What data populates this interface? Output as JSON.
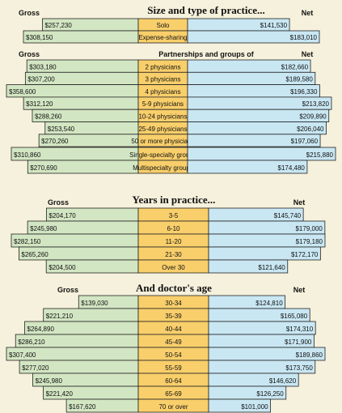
{
  "colors": {
    "background": "#f6f1dc",
    "gross_fill": "#d3e6c3",
    "net_fill": "#c9e7f3",
    "category_fill": "#f9cf6b",
    "border": "#222222"
  },
  "chart_data": [
    {
      "type": "table",
      "title": "Size and type of practice...",
      "gross_label": "Gross",
      "net_label": "Net",
      "rows": [
        {
          "category": "Solo",
          "gross": "$257,230",
          "net": "$141,530"
        },
        {
          "category": "Expense-sharing",
          "gross": "$308,150",
          "net": "$183,010"
        }
      ]
    },
    {
      "type": "table",
      "title": "Partnerships and groups of",
      "gross_label": "Gross",
      "net_label": "Net",
      "rows": [
        {
          "category": "2 physicians",
          "gross": "$303,180",
          "net": "$182,660"
        },
        {
          "category": "3 physicians",
          "gross": "$307,200",
          "net": "$189,580"
        },
        {
          "category": "4 physicians",
          "gross": "$358,600",
          "net": "$196,330"
        },
        {
          "category": "5-9 physicians",
          "gross": "$312,120",
          "net": "$213,820"
        },
        {
          "category": "10-24 physicians",
          "gross": "$288,260",
          "net": "$209,890"
        },
        {
          "category": "25-49 physicians",
          "gross": "$253,540",
          "net": "$206,040"
        },
        {
          "category": "50 or more physicians",
          "gross": "$270,260",
          "net": "$197,060"
        }
      ]
    },
    {
      "type": "table",
      "title": "",
      "gross_label": "",
      "net_label": "",
      "rows": [
        {
          "category": "Single-specialty groups",
          "gross": "$310,860",
          "net": "$215,880"
        },
        {
          "category": "Multispecialty groups",
          "gross": "$270,690",
          "net": "$174,480"
        }
      ]
    },
    {
      "type": "table",
      "title": "Years in practice...",
      "gross_label": "Gross",
      "net_label": "Net",
      "rows": [
        {
          "category": "3-5",
          "gross": "$204,170",
          "net": "$145,740"
        },
        {
          "category": "6-10",
          "gross": "$245,980",
          "net": "$179,000"
        },
        {
          "category": "11-20",
          "gross": "$282,150",
          "net": "$179,180"
        },
        {
          "category": "21-30",
          "gross": "$265,260",
          "net": "$172,170"
        },
        {
          "category": "Over 30",
          "gross": "$204,500",
          "net": "$121,640"
        }
      ]
    },
    {
      "type": "table",
      "title": "And doctor's age",
      "gross_label": "Gross",
      "net_label": "Net",
      "rows": [
        {
          "category": "30-34",
          "gross": "$139,030",
          "net": "$124,810"
        },
        {
          "category": "35-39",
          "gross": "$221,210",
          "net": "$165,080"
        },
        {
          "category": "40-44",
          "gross": "$264,890",
          "net": "$174,310"
        },
        {
          "category": "45-49",
          "gross": "$286,210",
          "net": "$171,900"
        },
        {
          "category": "50-54",
          "gross": "$307,400",
          "net": "$189,860"
        },
        {
          "category": "55-59",
          "gross": "$277,020",
          "net": "$173,750"
        },
        {
          "category": "60-64",
          "gross": "$245,980",
          "net": "$146,620"
        },
        {
          "category": "65-69",
          "gross": "$221,420",
          "net": "$126,250"
        },
        {
          "category": "70 or over",
          "gross": "$167,620",
          "net": "$101,000"
        }
      ]
    }
  ]
}
